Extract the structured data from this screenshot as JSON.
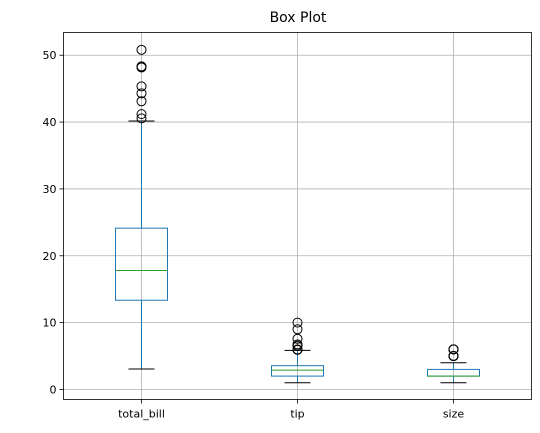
{
  "chart_data": {
    "type": "box",
    "title": "Box Plot",
    "xlabel": "",
    "ylabel": "",
    "ylim": [
      -1.5,
      53.4
    ],
    "yticks": [
      0,
      10,
      20,
      30,
      40,
      50
    ],
    "grid": true,
    "categories": [
      "total_bill",
      "tip",
      "size"
    ],
    "boxes": [
      {
        "name": "total_bill",
        "whisker_low": 3.07,
        "q1": 13.35,
        "median": 17.8,
        "q3": 24.13,
        "whisker_high": 40.17,
        "outliers": [
          40.55,
          41.19,
          43.11,
          44.3,
          45.35,
          48.17,
          48.27,
          48.33,
          50.81
        ]
      },
      {
        "name": "tip",
        "whisker_low": 1.0,
        "q1": 2.0,
        "median": 2.9,
        "q3": 3.56,
        "whisker_high": 5.85,
        "outliers": [
          5.92,
          6.0,
          6.5,
          6.7,
          6.73,
          7.58,
          9.0,
          10.0
        ]
      },
      {
        "name": "size",
        "whisker_low": 1,
        "q1": 2,
        "median": 2,
        "q3": 3,
        "whisker_high": 4,
        "outliers": [
          5,
          5,
          5,
          5,
          5,
          6,
          6,
          6,
          6
        ]
      }
    ],
    "colors": {
      "box": "#1f77b4",
      "median": "#2ca02c",
      "whisker": "#1f77b4",
      "cap": "#000000",
      "outlier": "#000000",
      "grid": "#b0b0b0"
    }
  }
}
